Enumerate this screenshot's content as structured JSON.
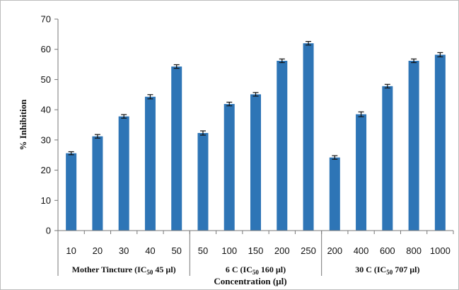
{
  "chart_data": {
    "type": "bar",
    "ylabel": "% Inhibition",
    "xlabel": "Concentration (µl)",
    "ylim": [
      0,
      70
    ],
    "y_ticks": [
      0,
      10,
      20,
      30,
      40,
      50,
      60,
      70
    ],
    "grid": false,
    "legend": "none",
    "bar_color": "#2e75b6",
    "groups": [
      {
        "label": "Mother Tincture (IC",
        "sub": "50",
        "label_tail": " 45 µl)",
        "categories": [
          "10",
          "20",
          "30",
          "40",
          "50"
        ]
      },
      {
        "label": "6 C (IC",
        "sub": "50",
        "label_tail": " 160 µl)",
        "categories": [
          "50",
          "100",
          "150",
          "200",
          "250"
        ]
      },
      {
        "label": "30 C (IC",
        "sub": "50",
        "label_tail": " 707 µl)",
        "categories": [
          "200",
          "400",
          "600",
          "800",
          "1000"
        ]
      }
    ],
    "categories": [
      "10",
      "20",
      "30",
      "40",
      "50",
      "50",
      "100",
      "150",
      "200",
      "250",
      "200",
      "400",
      "600",
      "800",
      "1000"
    ],
    "values": [
      25.6,
      31.2,
      37.8,
      44.3,
      54.3,
      32.3,
      41.9,
      45.1,
      56.2,
      62.0,
      24.2,
      38.5,
      47.8,
      56.2,
      58.2
    ],
    "errors": [
      0.5,
      0.6,
      0.6,
      0.7,
      0.6,
      0.7,
      0.6,
      0.6,
      0.6,
      0.6,
      0.6,
      0.8,
      0.6,
      0.6,
      0.7
    ]
  }
}
